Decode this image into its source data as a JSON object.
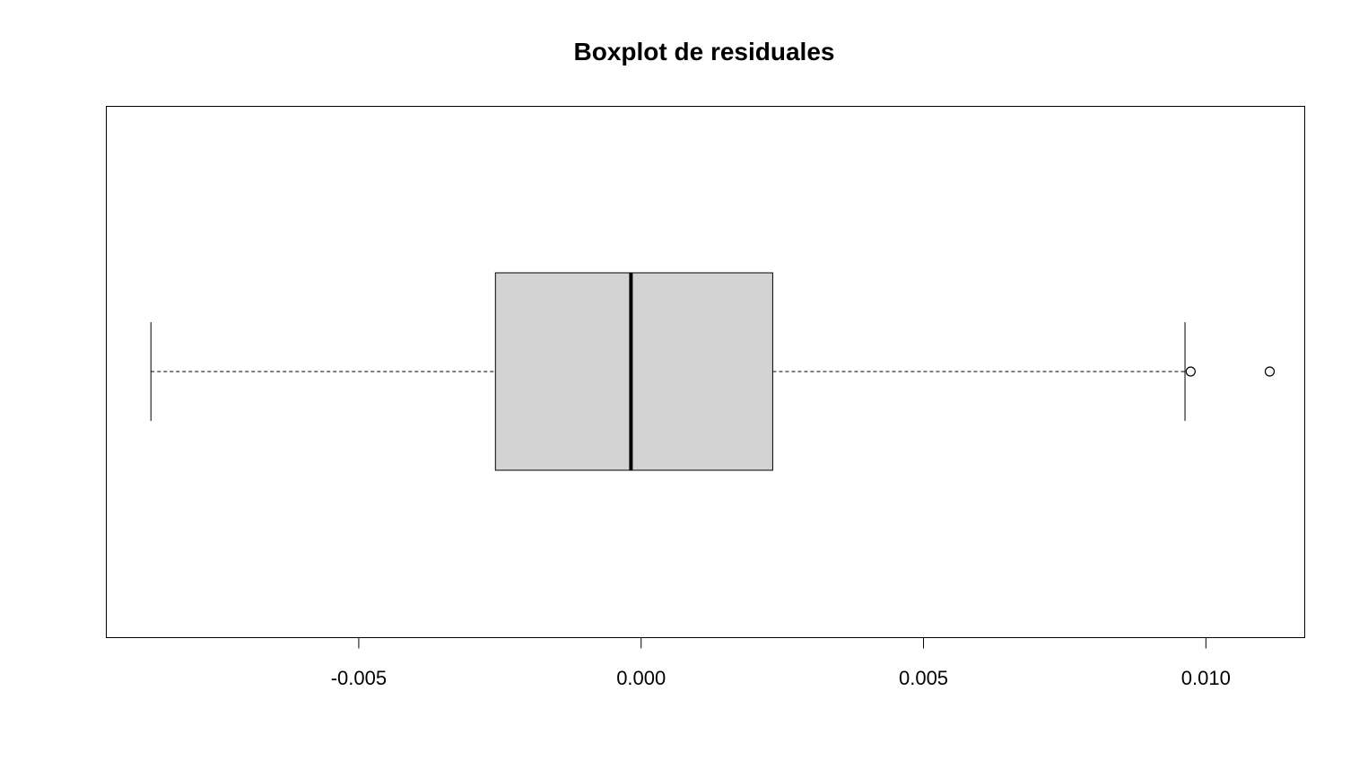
{
  "chart_data": {
    "type": "boxplot",
    "orientation": "horizontal",
    "title": "Boxplot de residuales",
    "xlabel": "",
    "ylabel": "",
    "xlim": [
      -0.00947,
      0.01175
    ],
    "ticks": [
      -0.005,
      0.0,
      0.005,
      0.01
    ],
    "tick_labels": [
      "-0.005",
      "0.000",
      "0.005",
      "0.010"
    ],
    "box": {
      "lower_whisker": -0.00868,
      "q1": -0.00258,
      "median": -0.00018,
      "q3": 0.00233,
      "upper_whisker": 0.00963
    },
    "outliers": [
      0.00973,
      0.01113
    ],
    "box_fill": "#d3d3d3",
    "grid": false
  }
}
